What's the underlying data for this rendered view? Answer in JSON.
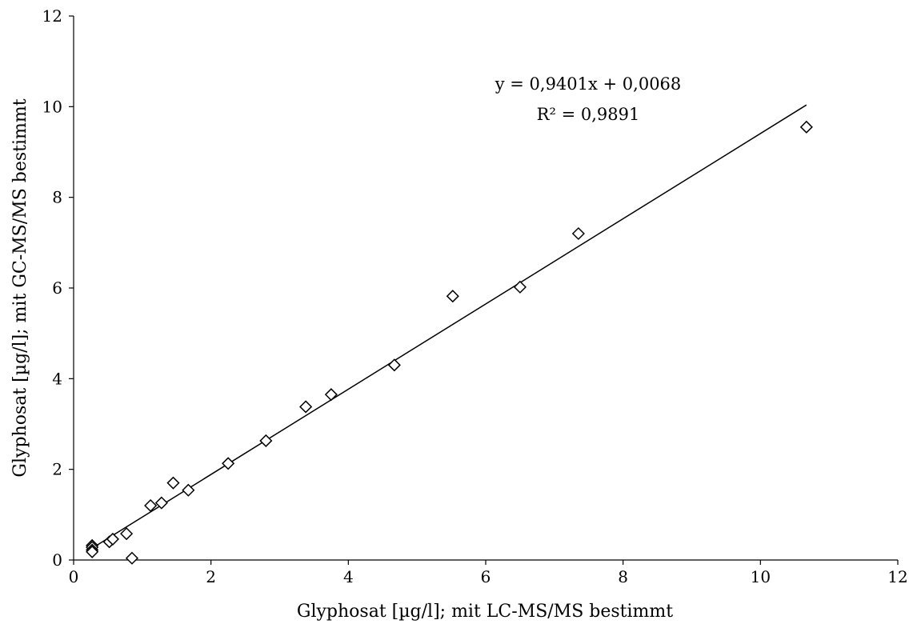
{
  "chart_data": {
    "type": "scatter",
    "xlabel": "Glyphosat  [µg/l]; mit LC-MS/MS bestimmt",
    "ylabel": "Glyphosat  [µg/l]; mit GC-MS/MS bestimmt",
    "xlim": [
      0,
      12
    ],
    "ylim": [
      0,
      12
    ],
    "xticks": [
      "0",
      "2",
      "4",
      "6",
      "8",
      "10",
      "12"
    ],
    "yticks": [
      "0",
      "2",
      "4",
      "6",
      "8",
      "10",
      "12"
    ],
    "grid": false,
    "marker": "diamond-open",
    "points": [
      {
        "x": 0.27,
        "y": 0.32
      },
      {
        "x": 0.27,
        "y": 0.28
      },
      {
        "x": 0.27,
        "y": 0.22
      },
      {
        "x": 0.27,
        "y": 0.18
      },
      {
        "x": 0.52,
        "y": 0.4
      },
      {
        "x": 0.57,
        "y": 0.46
      },
      {
        "x": 0.77,
        "y": 0.58
      },
      {
        "x": 0.85,
        "y": 0.04
      },
      {
        "x": 1.12,
        "y": 1.2
      },
      {
        "x": 1.28,
        "y": 1.26
      },
      {
        "x": 1.45,
        "y": 1.7
      },
      {
        "x": 1.67,
        "y": 1.54
      },
      {
        "x": 2.25,
        "y": 2.13
      },
      {
        "x": 2.8,
        "y": 2.63
      },
      {
        "x": 3.38,
        "y": 3.38
      },
      {
        "x": 3.75,
        "y": 3.65
      },
      {
        "x": 4.67,
        "y": 4.3
      },
      {
        "x": 5.52,
        "y": 5.82
      },
      {
        "x": 6.5,
        "y": 6.02
      },
      {
        "x": 7.35,
        "y": 7.2
      },
      {
        "x": 10.67,
        "y": 9.55
      }
    ],
    "trendline": {
      "slope": 0.9401,
      "intercept": 0.0068,
      "x_range": [
        0.2,
        10.67
      ],
      "equation": "y = 0,9401x  + 0,0068",
      "r_squared": "R² = 0,9891"
    }
  }
}
